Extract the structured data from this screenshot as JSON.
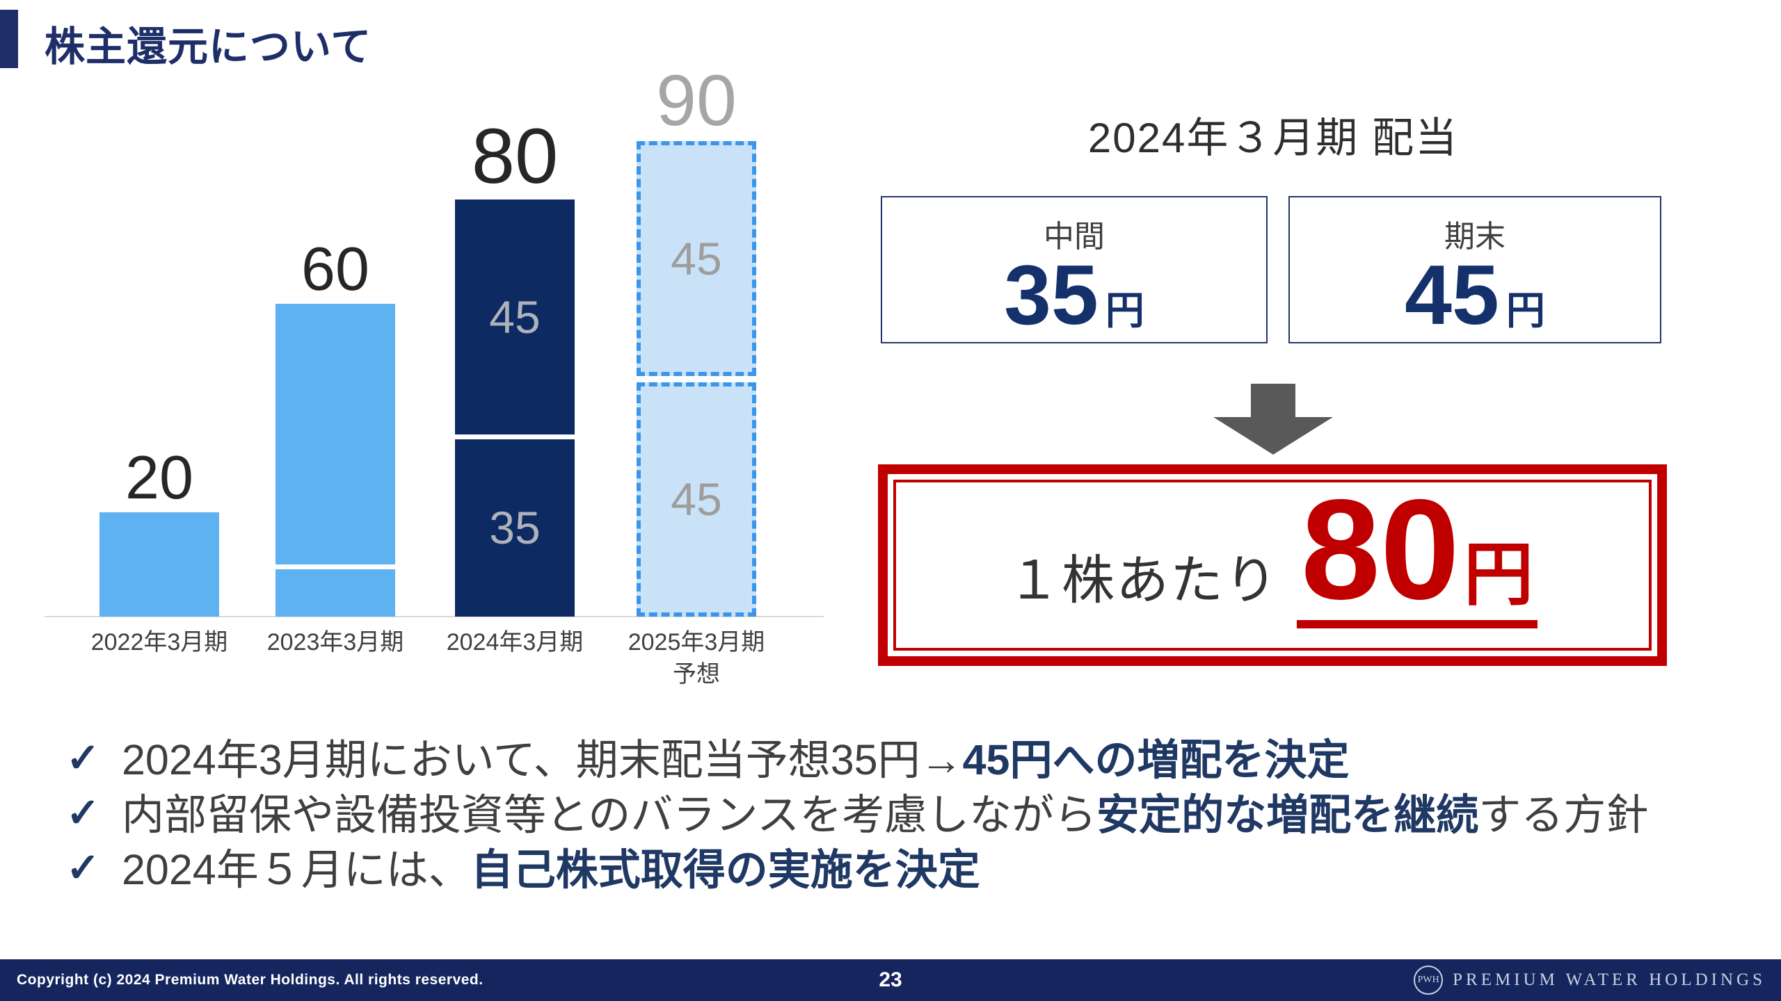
{
  "slide": {
    "title": "株主還元について",
    "page_number": "23",
    "copyright": "Copyright (c) 2024 Premium Water Holdings. All rights reserved.",
    "logo_monogram": "PWH",
    "logo_text": "PREMIUM WATER HOLDINGS"
  },
  "colors": {
    "title_navy": "#1e2e68",
    "bar_light_blue": "#5fb2f2",
    "bar_navy": "#0e2a63",
    "bar_forecast_fill": "#c9e2f8",
    "bar_forecast_dash": "#3b96ea",
    "gray_label": "#a6a6a6",
    "dark_label": "#262626",
    "text_gray": "#3f3f3f",
    "bold_navy": "#1f3864",
    "accent_red": "#c00000",
    "arrow_gray": "#595959",
    "footer_navy": "#15265e",
    "axis_gray": "#d9d9d9"
  },
  "chart_data": {
    "type": "bar",
    "stacked": true,
    "unit_suffix": "円",
    "ylim": [
      0,
      90
    ],
    "grid": false,
    "legend": false,
    "categories": [
      "2022年3月期",
      "2023年3月期",
      "2024年3月期",
      "2025年3月期\n予想"
    ],
    "totals": [
      20,
      60,
      80,
      90
    ],
    "bars": [
      {
        "category": "2022年3月期",
        "style": "light",
        "total": 20,
        "value_label": {
          "text": "20",
          "size": 88,
          "color": "#262626"
        },
        "segments": [
          {
            "value": 20,
            "label": ""
          }
        ]
      },
      {
        "category": "2023年3月期",
        "style": "light",
        "total": 60,
        "value_label": {
          "text": "60",
          "size": 88,
          "color": "#262626"
        },
        "segments": [
          {
            "value": 50,
            "label": ""
          },
          {
            "value": 10,
            "label": ""
          }
        ]
      },
      {
        "category": "2024年3月期",
        "style": "dark",
        "total": 80,
        "value_label": {
          "text": "80",
          "size": 112,
          "color": "#262626"
        },
        "segments": [
          {
            "value": 45,
            "label": "45"
          },
          {
            "value": 35,
            "label": "35"
          }
        ]
      },
      {
        "category": "2025年3月期\n予想",
        "style": "forecast",
        "total": 90,
        "value_label": {
          "text": "90",
          "size": 104,
          "color": "#a6a6a6"
        },
        "segments": [
          {
            "value": 45,
            "label": "45"
          },
          {
            "value": 45,
            "label": "45"
          }
        ]
      }
    ]
  },
  "right_panel": {
    "heading": "2024年３月期 配当",
    "boxes": [
      {
        "label": "中間",
        "value": "35",
        "unit": "円"
      },
      {
        "label": "期末",
        "value": "45",
        "unit": "円"
      }
    ],
    "result": {
      "prefix": "１株あたり",
      "value": "80",
      "unit": "円"
    }
  },
  "bullets": [
    {
      "check": "✓",
      "parts": [
        {
          "text": "2024年3月期において、期末配当予想35円→",
          "bold": false
        },
        {
          "text": "45円への増配を決定",
          "bold": true
        }
      ]
    },
    {
      "check": "✓",
      "parts": [
        {
          "text": "内部留保や設備投資等とのバランスを考慮しながら",
          "bold": false
        },
        {
          "text": "安定的な増配を継続",
          "bold": true
        },
        {
          "text": "する方針",
          "bold": false
        }
      ]
    },
    {
      "check": "✓",
      "parts": [
        {
          "text": "2024年５月には、",
          "bold": false
        },
        {
          "text": "自己株式取得の実施を決定",
          "bold": true
        }
      ]
    }
  ]
}
